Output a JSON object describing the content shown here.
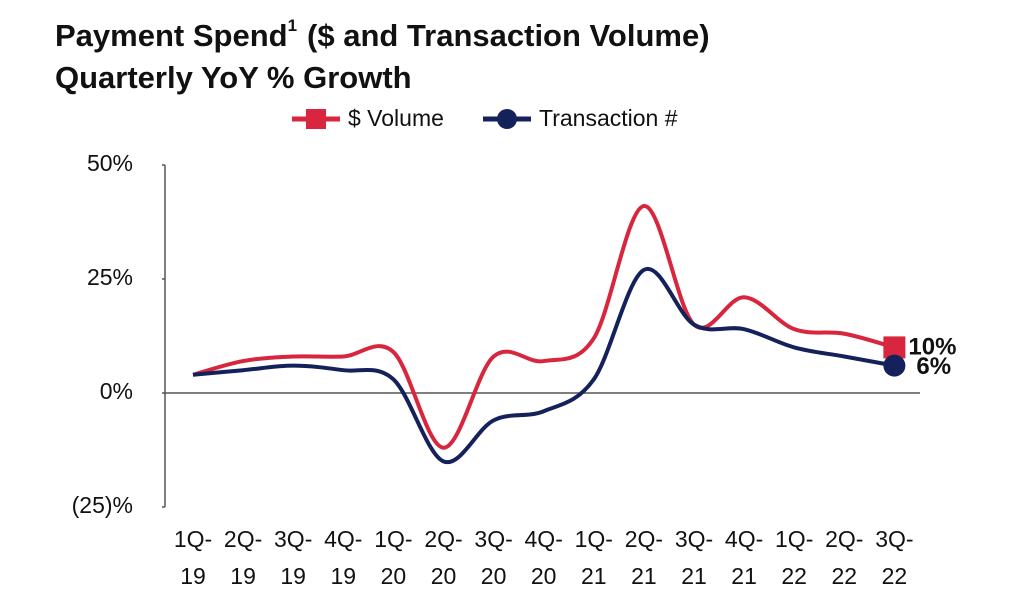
{
  "chart_data": {
    "type": "line",
    "title": "Payment Spend",
    "title_footnote": "1",
    "title_rest": "($ and Transaction Volume)",
    "subtitle": "Quarterly YoY % Growth",
    "categories": [
      "1Q-19",
      "2Q-19",
      "3Q-19",
      "4Q-19",
      "1Q-20",
      "2Q-20",
      "3Q-20",
      "4Q-20",
      "1Q-21",
      "2Q-21",
      "3Q-21",
      "4Q-21",
      "1Q-22",
      "2Q-22",
      "3Q-22"
    ],
    "series": [
      {
        "name": "$ Volume",
        "color": "#d7263d",
        "marker": "square",
        "values": [
          4,
          7,
          8,
          8,
          9,
          -12,
          8,
          7,
          12,
          41,
          15,
          21,
          14,
          13,
          10
        ],
        "value_labels": [
          null,
          null,
          null,
          null,
          null,
          null,
          null,
          null,
          null,
          null,
          null,
          null,
          null,
          null,
          "10%"
        ]
      },
      {
        "name": "Transaction #",
        "color": "#14215a",
        "marker": "circle",
        "values": [
          4,
          5,
          6,
          5,
          3,
          -15,
          -6,
          -4,
          3,
          27,
          15,
          14,
          10,
          8,
          6
        ],
        "value_labels": [
          null,
          null,
          null,
          null,
          null,
          null,
          null,
          null,
          null,
          null,
          null,
          null,
          null,
          null,
          "6%"
        ]
      }
    ],
    "ylim": [
      -25,
      50
    ],
    "yticks": [
      {
        "value": 50,
        "label": "50%"
      },
      {
        "value": 25,
        "label": "25%"
      },
      {
        "value": 0,
        "label": "0%"
      },
      {
        "value": -25,
        "label": "(25)%"
      }
    ]
  }
}
